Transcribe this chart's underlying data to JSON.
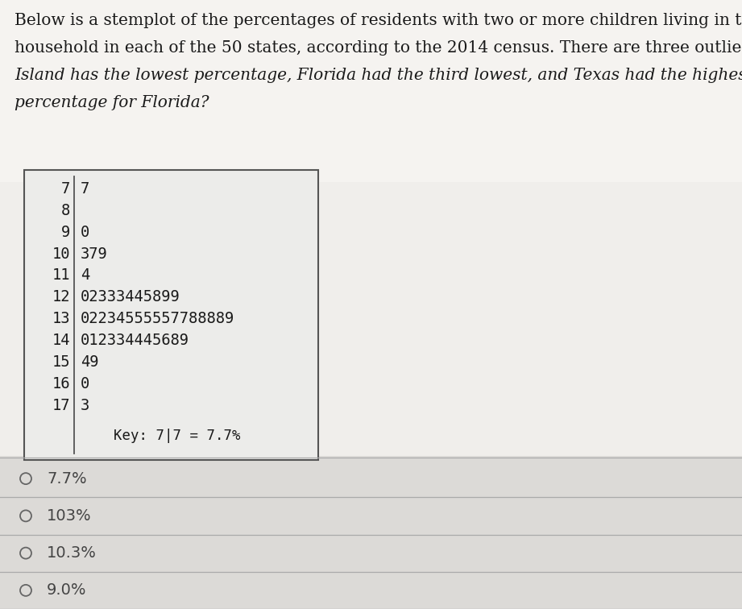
{
  "title_text": "Below is a stemplot of the percentages of residents with two or more children living in their\nhousehold in each of the 50 states, according to the 2014 census. There are three outliers: Rhode\nIsland has the lowest percentage, Florida had the third lowest, and Texas had the highest. What is the\npercentage for Florida?",
  "stem_leaves": [
    {
      "stem": "7",
      "leaves": "7"
    },
    {
      "stem": "8",
      "leaves": ""
    },
    {
      "stem": "9",
      "leaves": "0"
    },
    {
      "stem": "10",
      "leaves": "379"
    },
    {
      "stem": "11",
      "leaves": "4"
    },
    {
      "stem": "12",
      "leaves": "02333445899"
    },
    {
      "stem": "13",
      "leaves": "02234555557788889"
    },
    {
      "stem": "14",
      "leaves": "012334445689"
    },
    {
      "stem": "15",
      "leaves": "49"
    },
    {
      "stem": "16",
      "leaves": "0"
    },
    {
      "stem": "17",
      "leaves": "3"
    }
  ],
  "key_text": "Key: 7|7 = 7.7%",
  "answer_choices": [
    "7.7%",
    "103%",
    "10.3%",
    "9.0%"
  ],
  "page_bg": "#c8c8c8",
  "content_bg": "#f0eeeb",
  "box_bg": "#f5f3f0",
  "box_border": "#555555",
  "answer_bg": "#e8e6e3",
  "sep_line_color": "#aaaaaa",
  "text_color": "#1a1a1a",
  "choice_color": "#444444",
  "title_fontsize": 14.5,
  "stem_fontsize": 13.5,
  "key_fontsize": 12.5,
  "choice_fontsize": 14
}
